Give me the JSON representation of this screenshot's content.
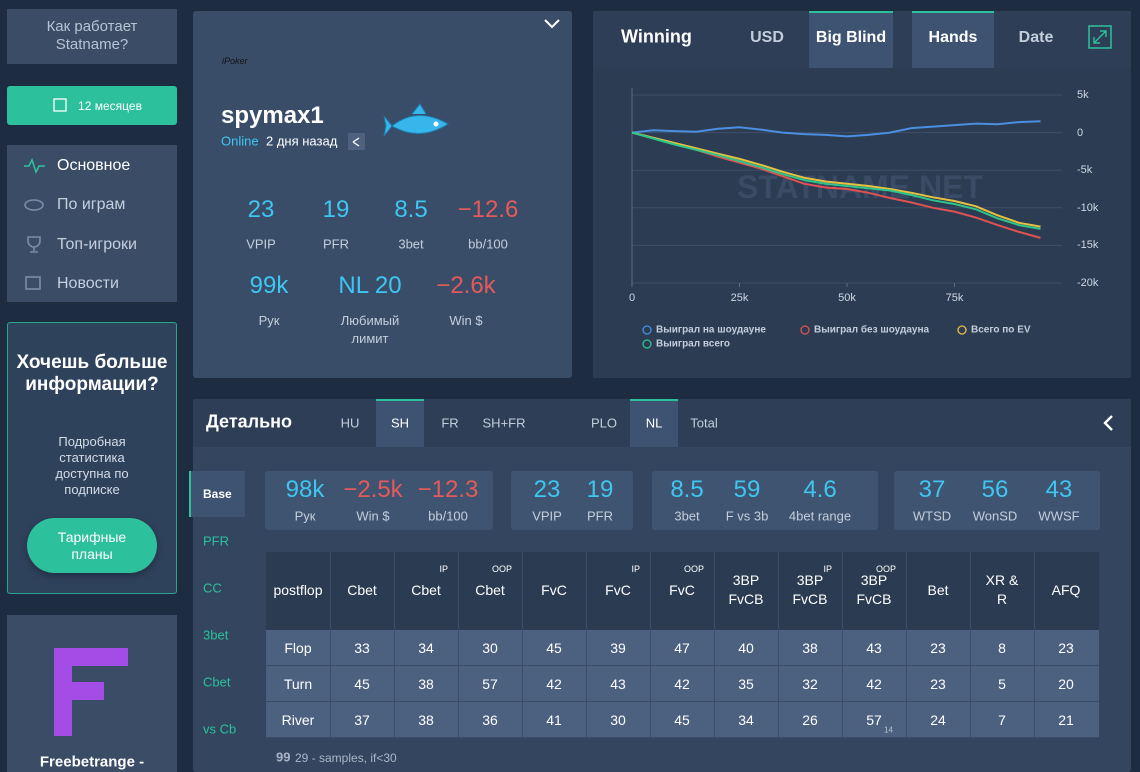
{
  "sidebar": {
    "how_it_works": "Как работает Statname?",
    "period": "12 месяцев",
    "nav": [
      "Основное",
      "По играм",
      "Топ-игроки",
      "Новости"
    ],
    "promo": {
      "title": "Хочешь больше информации?",
      "text": "Подробная статистика доступна по подписке",
      "button": "Тарифные планы"
    },
    "ad": "Freebetrange -"
  },
  "profile": {
    "room": "iPoker",
    "name": "spymax1",
    "status": "Online",
    "last_seen": "2 дня назад",
    "stats": [
      {
        "value": "23",
        "label": "VPIP"
      },
      {
        "value": "19",
        "label": "PFR"
      },
      {
        "value": "8.5",
        "label": "3bet"
      },
      {
        "value": "−12.6",
        "label": "bb/100"
      }
    ],
    "stats2": [
      {
        "value": "99k",
        "label": "Рук"
      },
      {
        "value": "NL 20",
        "label": "Любимый лимит"
      },
      {
        "value": "−2.6k",
        "label": "Win $"
      }
    ]
  },
  "winning_chart": {
    "type": "line",
    "title": "Winning",
    "tabs": [
      "USD",
      "Big Blind",
      "Hands",
      "Date"
    ],
    "watermark": "STATNAME.NET",
    "x": [
      0,
      5000,
      10000,
      15000,
      20000,
      25000,
      30000,
      35000,
      40000,
      45000,
      50000,
      55000,
      60000,
      65000,
      70000,
      75000,
      80000,
      85000,
      90000,
      95000
    ],
    "series": [
      {
        "name": "Выиграл на шоудауне",
        "color": "#4a8fe0",
        "values": [
          0,
          300,
          200,
          100,
          500,
          700,
          400,
          0,
          -200,
          -300,
          -500,
          -300,
          0,
          600,
          800,
          1000,
          1200,
          1100,
          1400,
          1500
        ]
      },
      {
        "name": "Выиграл без шоудауна",
        "color": "#e05252",
        "values": [
          0,
          -700,
          -1500,
          -2300,
          -3200,
          -4000,
          -4800,
          -5800,
          -6800,
          -7300,
          -7500,
          -8000,
          -8700,
          -9300,
          -10000,
          -10500,
          -11300,
          -12300,
          -13200,
          -14000
        ]
      },
      {
        "name": "Всего по EV",
        "color": "#e8c040",
        "values": [
          0,
          -700,
          -1400,
          -2100,
          -2800,
          -3500,
          -4300,
          -5200,
          -6000,
          -6500,
          -6800,
          -7100,
          -7500,
          -8000,
          -8600,
          -9100,
          -9800,
          -11000,
          -12000,
          -12500
        ]
      },
      {
        "name": "Выиграл всего",
        "color": "#2fc48a",
        "values": [
          0,
          -800,
          -1600,
          -2300,
          -3000,
          -3800,
          -4600,
          -5500,
          -6300,
          -6800,
          -7100,
          -7400,
          -7700,
          -8300,
          -9000,
          -9500,
          -10200,
          -11400,
          -12300,
          -12800
        ]
      }
    ],
    "xlim": [
      0,
      100000
    ],
    "ylim": [
      -20000,
      5000
    ],
    "xticks": [
      0,
      {
        "value": 25000,
        "label": "25k"
      },
      {
        "value": 50000,
        "label": "50k"
      },
      {
        "value": 75000,
        "label": "75k"
      }
    ],
    "yticks": [
      {
        "value": 5000,
        "label": "5k"
      },
      0,
      {
        "value": -5000,
        "label": "-5k"
      },
      {
        "value": -10000,
        "label": "-10k"
      },
      {
        "value": -15000,
        "label": "-15k"
      },
      {
        "value": -20000,
        "label": "-20k"
      }
    ],
    "grid": true
  },
  "detail": {
    "title": "Детально",
    "tabs_format": [
      "HU",
      "SH",
      "FR",
      "SH+FR"
    ],
    "tabs_game": [
      "PLO",
      "NL",
      "Total"
    ],
    "side_tabs": [
      "Base",
      "PFR",
      "CC",
      "3bet",
      "Cbet",
      "vs Cb"
    ],
    "summary": [
      [
        {
          "value": "98k",
          "label": "Рук"
        },
        {
          "value": "−2.5k",
          "label": "Win $"
        },
        {
          "value": "−12.3",
          "label": "bb/100"
        }
      ],
      [
        {
          "value": "23",
          "label": "VPIP"
        },
        {
          "value": "19",
          "label": "PFR"
        }
      ],
      [
        {
          "value": "8.5",
          "label": "3bet"
        },
        {
          "value": "59",
          "label": "F vs 3b"
        },
        {
          "value": "4.6",
          "label": "4bet range"
        }
      ],
      [
        {
          "value": "37",
          "label": "WTSD"
        },
        {
          "value": "56",
          "label": "WonSD"
        },
        {
          "value": "43",
          "label": "WWSF"
        }
      ]
    ],
    "table": {
      "headers": [
        {
          "label": "postflop"
        },
        {
          "label": "Cbet"
        },
        {
          "label": "Cbet",
          "tag": "IP"
        },
        {
          "label": "Cbet",
          "tag": "OOP"
        },
        {
          "label": "FvC"
        },
        {
          "label": "FvC",
          "tag": "IP"
        },
        {
          "label": "FvC",
          "tag": "OOP"
        },
        {
          "label": "3BP FvCB"
        },
        {
          "label": "3BP FvCB",
          "tag": "IP"
        },
        {
          "label": "3BP FvCB",
          "tag": "OOP"
        },
        {
          "label": "Bet"
        },
        {
          "label": "XR & R"
        },
        {
          "label": "AFQ"
        }
      ],
      "rows": [
        {
          "label": "Flop",
          "values": [
            33,
            34,
            30,
            45,
            39,
            47,
            40,
            38,
            43,
            23,
            8,
            23
          ]
        },
        {
          "label": "Turn",
          "values": [
            45,
            38,
            57,
            42,
            43,
            42,
            35,
            32,
            42,
            23,
            5,
            20
          ]
        },
        {
          "label": "River",
          "values": [
            37,
            38,
            36,
            41,
            30,
            45,
            34,
            26,
            {
              "value": 57,
              "samples": 14
            },
            24,
            7,
            21
          ]
        }
      ]
    },
    "footnote": {
      "example": "99",
      "text": "29 - samples, if<30"
    }
  }
}
